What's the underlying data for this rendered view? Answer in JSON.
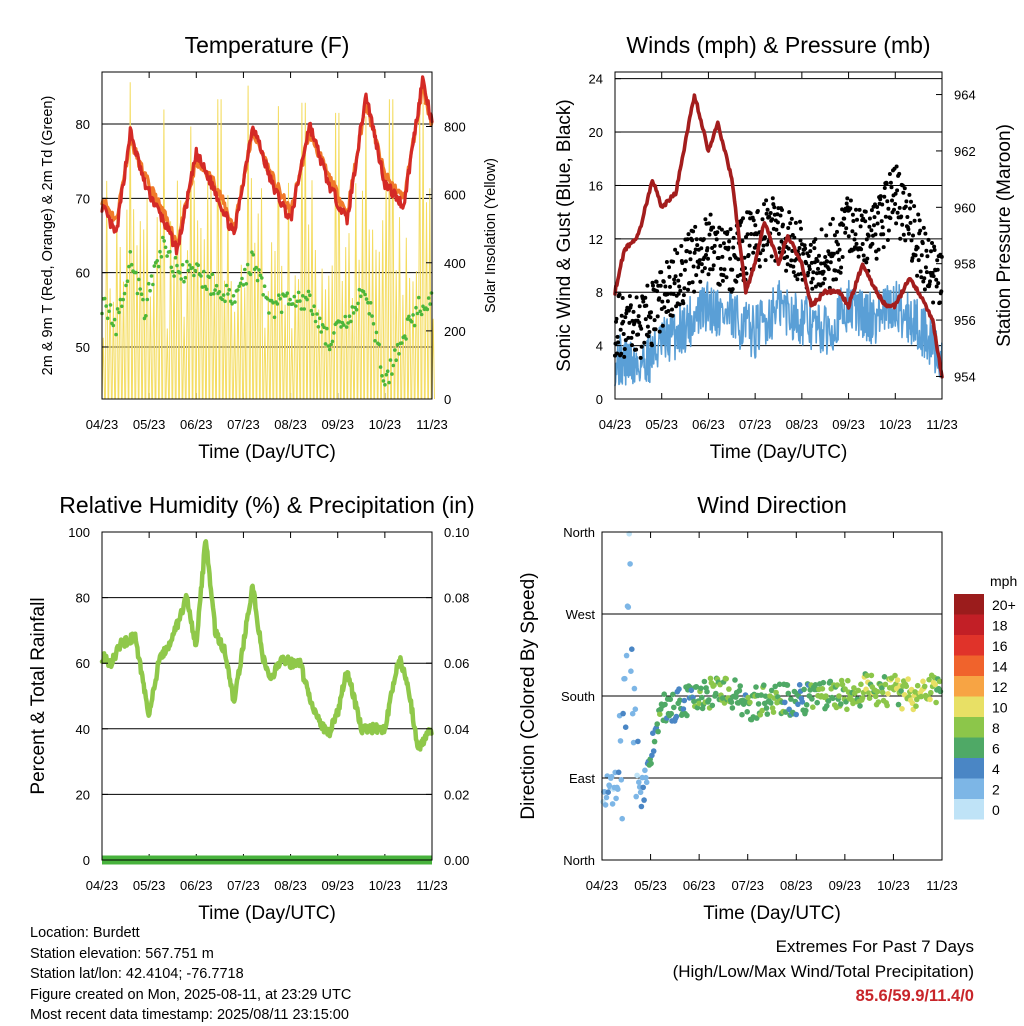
{
  "meta": {
    "location": "Location: Burdett",
    "elevation": "Station elevation: 567.751 m",
    "latlon": "Station lat/lon: 42.4104; -76.7718",
    "created": "Figure created on Mon, 2025-08-11, at 23:29 UTC",
    "recent": "Most recent data timestamp: 2025/08/11 23:15:00"
  },
  "extremes": {
    "title": "Extremes For Past 7 Days",
    "subtitle": "(High/Low/Max Wind/Total Precipitation)",
    "values": "85.6/59.9/11.4/0"
  },
  "colors": {
    "temp_2m": "#d42a26",
    "temp_9m": "#f07a2a",
    "dewpoint": "#4cb63a",
    "solar": "#f4dc60",
    "gust": "#000000",
    "wind": "#5a9fd6",
    "pressure": "#a31d1d",
    "humidity": "#8fc84a",
    "precip": "#48b33d"
  },
  "chart_data": [
    {
      "type": "line",
      "title": "Temperature (F)",
      "xlabel": "Time (Day/UTC)",
      "ylabel": "2m & 9m T (Red, Orange) & 2m Td (Green)",
      "ylabel_right": "Solar Insolation (Yellow)",
      "x_ticks": [
        "04/23",
        "05/23",
        "06/23",
        "07/23",
        "08/23",
        "09/23",
        "10/23",
        "11/23"
      ],
      "ylim": [
        43,
        87
      ],
      "y_ticks": [
        50,
        60,
        70,
        80
      ],
      "y2lim": [
        0,
        960
      ],
      "y2_ticks": [
        0,
        200,
        400,
        600,
        800
      ],
      "grid": true,
      "series": [
        {
          "name": "2m T",
          "color": "#d42a26",
          "x": [
            0,
            0.3,
            0.6,
            0.9,
            1.3,
            1.6,
            2.0,
            2.4,
            2.8,
            3.2,
            3.6,
            4.0,
            4.4,
            4.8,
            5.2,
            5.6,
            6.0,
            6.4,
            6.8,
            7.0
          ],
          "values": [
            69,
            65,
            79,
            72,
            67,
            63,
            76,
            71,
            65,
            80,
            72,
            67,
            80,
            72,
            67,
            84,
            72,
            69,
            86,
            80
          ]
        },
        {
          "name": "9m T",
          "color": "#f07a2a",
          "x": [
            0,
            0.3,
            0.6,
            0.9,
            1.3,
            1.6,
            2.0,
            2.4,
            2.8,
            3.2,
            3.6,
            4.0,
            4.4,
            4.8,
            5.2,
            5.6,
            6.0,
            6.4,
            6.8,
            7.0
          ],
          "values": [
            70,
            67,
            78,
            73,
            68,
            64,
            75,
            72,
            66,
            79,
            73,
            68,
            79,
            73,
            68,
            83,
            73,
            70,
            85,
            80
          ]
        },
        {
          "name": "2m Td",
          "color": "#4cb63a",
          "x": [
            0,
            0.3,
            0.6,
            0.9,
            1.3,
            1.6,
            2.0,
            2.4,
            2.8,
            3.2,
            3.6,
            4.0,
            4.4,
            4.8,
            5.2,
            5.6,
            6.0,
            6.4,
            6.8,
            7.0
          ],
          "values": [
            56,
            53,
            62,
            55,
            64,
            60,
            60,
            58,
            56,
            62,
            55,
            57,
            56,
            51,
            53,
            58,
            45,
            52,
            56,
            56
          ]
        },
        {
          "name": "Solar",
          "color": "#f4dc60",
          "axis": "right",
          "peak_days": [
            0.55,
            1.3,
            1.85,
            2.45,
            3.05,
            3.7,
            4.25,
            4.95,
            5.55,
            6.1,
            6.75
          ],
          "peak_values": [
            930,
            850,
            800,
            880,
            920,
            860,
            870,
            840,
            830,
            880,
            870
          ]
        }
      ]
    },
    {
      "type": "line",
      "title": "Winds (mph) & Pressure (mb)",
      "xlabel": "Time (Day/UTC)",
      "ylabel": "Sonic Wind & Gust (Blue, Black)",
      "ylabel_right": "Station Pressure (Maroon)",
      "x_ticks": [
        "04/23",
        "05/23",
        "06/23",
        "07/23",
        "08/23",
        "09/23",
        "10/23",
        "11/23"
      ],
      "ylim": [
        0,
        24.5
      ],
      "y_ticks": [
        0,
        4,
        8,
        12,
        16,
        20,
        24
      ],
      "y2lim": [
        953.2,
        964.8
      ],
      "y2_ticks": [
        954,
        956,
        958,
        960,
        962,
        964
      ],
      "grid": true,
      "series": [
        {
          "name": "Wind",
          "color": "#5a9fd6",
          "x": [
            0,
            0.5,
            1.0,
            1.5,
            2.0,
            2.5,
            3.0,
            3.5,
            4.0,
            4.5,
            5.0,
            5.5,
            6.0,
            6.5,
            7.0
          ],
          "values": [
            3,
            2.5,
            4,
            5.5,
            7,
            6,
            5,
            7,
            6,
            5,
            7,
            6,
            7,
            5.5,
            3
          ]
        },
        {
          "name": "Gust",
          "color": "#000000",
          "x": [
            0,
            0.5,
            1.0,
            1.5,
            2.0,
            2.5,
            3.0,
            3.5,
            4.0,
            4.5,
            5.0,
            5.5,
            6.0,
            6.5,
            7.0
          ],
          "values": [
            5.5,
            5,
            7,
            9.5,
            11.5,
            10,
            12,
            12.5,
            10.5,
            10,
            12.5,
            11.5,
            15,
            11,
            8
          ]
        },
        {
          "name": "Pressure",
          "color": "#a31d1d",
          "axis": "right",
          "x": [
            0,
            0.2,
            0.5,
            0.8,
            1.0,
            1.3,
            1.7,
            2.0,
            2.2,
            2.5,
            2.8,
            3.0,
            3.2,
            3.5,
            3.7,
            4.0,
            4.2,
            4.5,
            4.8,
            5.0,
            5.3,
            5.6,
            5.8,
            6.0,
            6.3,
            6.5,
            6.8,
            7.0
          ],
          "values": [
            957,
            958.5,
            959,
            961,
            960,
            960.5,
            964,
            962,
            963,
            961,
            957,
            958,
            959.5,
            958,
            959,
            958,
            956.5,
            957,
            957,
            956.5,
            958,
            957,
            956.5,
            956.5,
            957.5,
            957,
            956,
            954
          ]
        }
      ]
    },
    {
      "type": "line",
      "title": "Relative Humidity (%) & Precipitation (in)",
      "xlabel": "Time (Day/UTC)",
      "ylabel": "Percent & Total Rainfall",
      "x_ticks": [
        "04/23",
        "05/23",
        "06/23",
        "07/23",
        "08/23",
        "09/23",
        "10/23",
        "11/23"
      ],
      "ylim": [
        0,
        100
      ],
      "y_ticks": [
        0,
        20,
        40,
        60,
        80,
        100
      ],
      "y2lim": [
        0,
        0.1
      ],
      "y2_ticks": [
        "0.00",
        "0.02",
        "0.04",
        "0.06",
        "0.08",
        "0.10"
      ],
      "grid": true,
      "series": [
        {
          "name": "RH",
          "color": "#8fc84a",
          "x": [
            0,
            0.2,
            0.4,
            0.7,
            1.0,
            1.2,
            1.5,
            1.8,
            2.0,
            2.2,
            2.4,
            2.6,
            2.8,
            3.0,
            3.2,
            3.4,
            3.6,
            3.8,
            4.0,
            4.2,
            4.5,
            4.8,
            5.0,
            5.2,
            5.5,
            5.8,
            6.0,
            6.3,
            6.5,
            6.7,
            7.0
          ],
          "values": [
            62,
            60,
            66,
            68,
            44,
            60,
            68,
            80,
            65,
            98,
            70,
            64,
            48,
            66,
            84,
            62,
            55,
            62,
            60,
            60,
            45,
            38,
            45,
            58,
            40,
            40,
            40,
            62,
            53,
            34,
            40
          ]
        },
        {
          "name": "Precipitation",
          "color": "#48b33d",
          "axis": "right",
          "x": [
            0,
            7
          ],
          "values": [
            0,
            0
          ]
        }
      ]
    },
    {
      "type": "scatter",
      "title": "Wind Direction",
      "xlabel": "Time (Day/UTC)",
      "ylabel": "Direction (Colored By Speed)",
      "x_ticks": [
        "04/23",
        "05/23",
        "06/23",
        "07/23",
        "08/23",
        "09/23",
        "10/23",
        "11/23"
      ],
      "y_ticks": [
        "North",
        "East",
        "South",
        "West",
        "North"
      ],
      "ylim": [
        0,
        360
      ],
      "grid": true,
      "series": [
        {
          "name": "Direction",
          "x": [
            0,
            0.4,
            0.5,
            0.55,
            0.6,
            0.7,
            0.9,
            1.2,
            1.5,
            2.0,
            2.5,
            3.0,
            3.5,
            4.0,
            4.5,
            5.0,
            5.5,
            6.0,
            6.5,
            7.0
          ],
          "values": [
            70,
            90,
            150,
            340,
            270,
            60,
            90,
            170,
            170,
            180,
            190,
            170,
            180,
            175,
            185,
            180,
            190,
            185,
            180,
            190
          ],
          "speeds": [
            2,
            2,
            3,
            1,
            3,
            2,
            3,
            6,
            5,
            6,
            7,
            6,
            7,
            5,
            7,
            7,
            8,
            8,
            9,
            7
          ]
        }
      ],
      "colorbar": {
        "label": "mph",
        "labels": [
          "20+",
          "18",
          "16",
          "14",
          "12",
          "10",
          "8",
          "6",
          "4",
          "2",
          "0"
        ],
        "colors": [
          "#9b1c1c",
          "#c21f26",
          "#e0332a",
          "#f0632c",
          "#f7a444",
          "#e8e065",
          "#8cc64a",
          "#4fa966",
          "#4a86c5",
          "#7db6e6",
          "#bfe3f7"
        ]
      }
    }
  ]
}
